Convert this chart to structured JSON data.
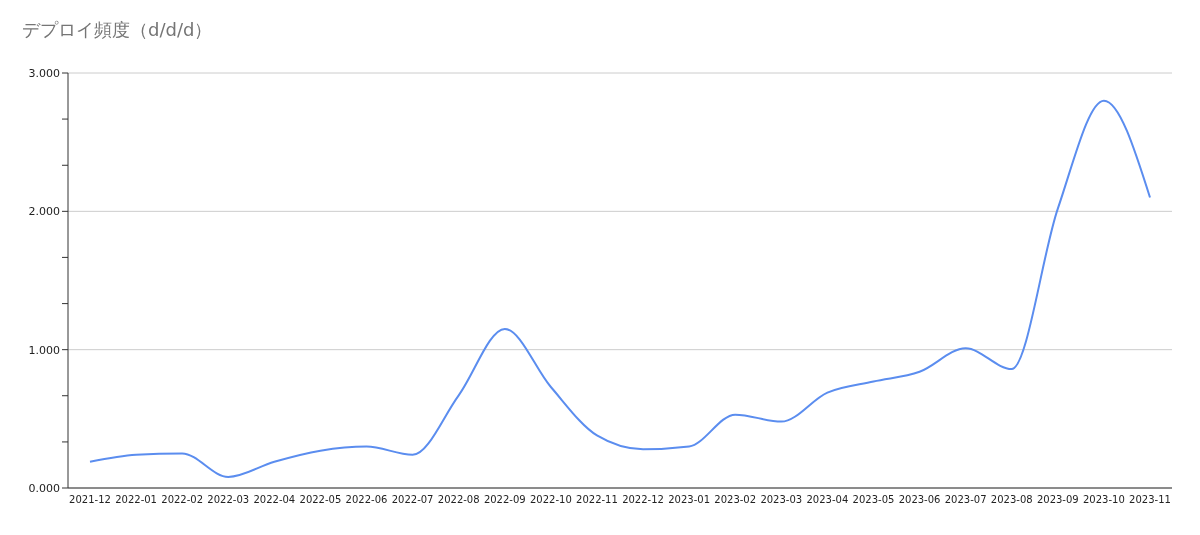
{
  "chart_data": {
    "type": "line",
    "title": "デプロイ頻度（d/d/d）",
    "categories": [
      "2021-12",
      "2022-01",
      "2022-02",
      "2022-03",
      "2022-04",
      "2022-05",
      "2022-06",
      "2022-07",
      "2022-08",
      "2022-09",
      "2022-10",
      "2022-11",
      "2022-12",
      "2023-01",
      "2023-02",
      "2023-03",
      "2023-04",
      "2023-05",
      "2023-06",
      "2023-07",
      "2023-08",
      "2023-09",
      "2023-10",
      "2023-11"
    ],
    "series": [
      {
        "color": "#5b8def",
        "values": [
          0.19,
          0.24,
          0.25,
          0.08,
          0.19,
          0.27,
          0.3,
          0.24,
          0.67,
          1.15,
          0.73,
          0.38,
          0.28,
          0.3,
          0.53,
          0.48,
          0.69,
          0.77,
          0.84,
          1.01,
          0.86,
          2.02,
          2.8,
          2.1
        ]
      }
    ],
    "ylim": [
      0,
      3
    ],
    "yticks": [
      {
        "value": 0,
        "label": "0.000"
      },
      {
        "value": 0.333,
        "label": null
      },
      {
        "value": 0.667,
        "label": null
      },
      {
        "value": 1,
        "label": "1.000"
      },
      {
        "value": 1.333,
        "label": null
      },
      {
        "value": 1.667,
        "label": null
      },
      {
        "value": 2,
        "label": "2.000"
      },
      {
        "value": 2.333,
        "label": null
      },
      {
        "value": 2.667,
        "label": null
      },
      {
        "value": 3,
        "label": "3.000"
      }
    ],
    "grid": "y",
    "legend": false,
    "marker": "none",
    "line_style": "solid"
  }
}
